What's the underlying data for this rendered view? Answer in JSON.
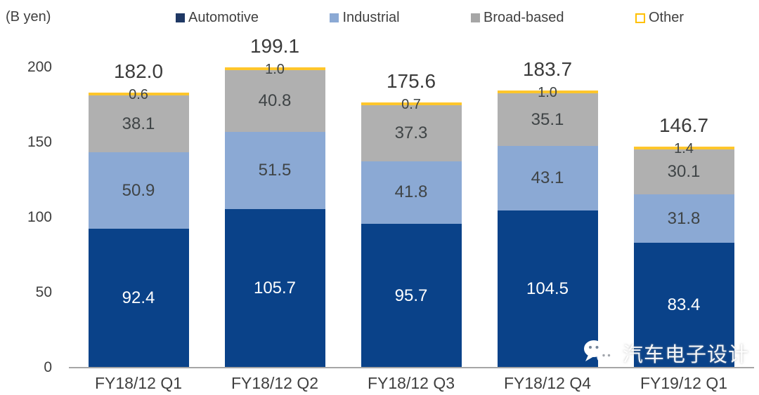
{
  "unit_label": "(B yen)",
  "legend": {
    "items": [
      {
        "label": "Automotive",
        "color": "#1F3864",
        "filled": true
      },
      {
        "label": "Industrial",
        "color": "#8BA9D4",
        "filled": true
      },
      {
        "label": "Broad-based",
        "color": "#A6A6A6",
        "filled": true
      },
      {
        "label": "Other",
        "color": "#FFC000",
        "filled": false
      }
    ]
  },
  "chart_data": {
    "type": "bar",
    "stacked": true,
    "title": "",
    "unit": "B yen",
    "ylabel": "(B yen)",
    "xlabel": "",
    "categories": [
      "FY18/12 Q1",
      "FY18/12 Q2",
      "FY18/12 Q3",
      "FY18/12 Q4",
      "FY19/12 Q1"
    ],
    "series": [
      {
        "name": "Automotive",
        "color": "#0A4289",
        "label_color": "#FFFFFF",
        "values": [
          92.4,
          105.7,
          95.7,
          104.5,
          83.4
        ]
      },
      {
        "name": "Industrial",
        "color": "#8BA9D4",
        "label_color": "#3F4446",
        "values": [
          50.9,
          51.5,
          41.8,
          43.1,
          31.8
        ]
      },
      {
        "name": "Broad-based",
        "color": "#B0B0B0",
        "label_color": "#3F4446",
        "values": [
          38.1,
          40.8,
          37.3,
          35.1,
          30.1
        ]
      },
      {
        "name": "Other",
        "color": "#FFC62B",
        "label_color": "#3F4446",
        "values": [
          0.6,
          1.0,
          0.7,
          1.0,
          1.4
        ]
      }
    ],
    "totals": [
      182.0,
      199.1,
      175.6,
      183.7,
      146.7
    ],
    "yticks": [
      0,
      50,
      100,
      150,
      200
    ],
    "ylim": [
      0,
      200
    ],
    "grid": false,
    "legend_position": "top"
  },
  "axis": {
    "line_color": "#A6A6A6",
    "tick_color": "#3F3F3F"
  },
  "watermark": {
    "text": "汽车电子设计",
    "icon": "wechat-chat-bubbles"
  }
}
